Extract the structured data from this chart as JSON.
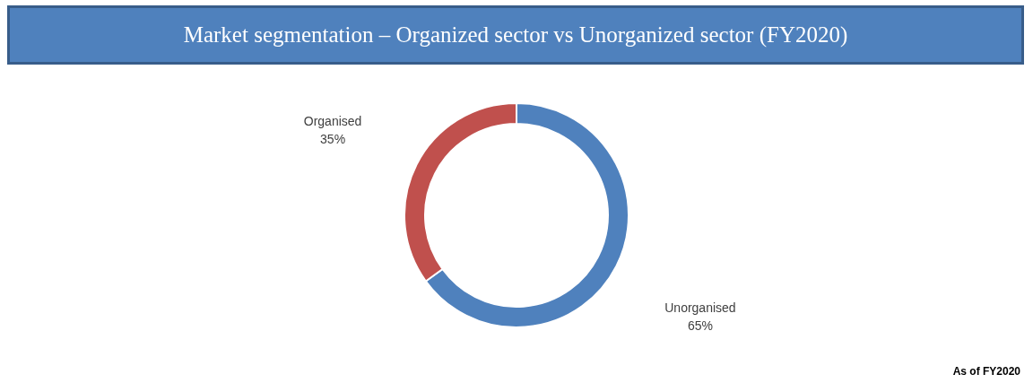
{
  "chart_data": {
    "type": "donut",
    "title": "Market segmentation – Organized sector vs Unorganized sector (FY2020)",
    "categories": [
      "Unorganised",
      "Organised"
    ],
    "values": [
      65,
      35
    ],
    "colors": [
      "#4f81bd",
      "#c0504d"
    ],
    "data_labels": true,
    "value_labels": [
      "65%",
      "35%"
    ],
    "annotations": [
      "As of FY2020"
    ]
  }
}
